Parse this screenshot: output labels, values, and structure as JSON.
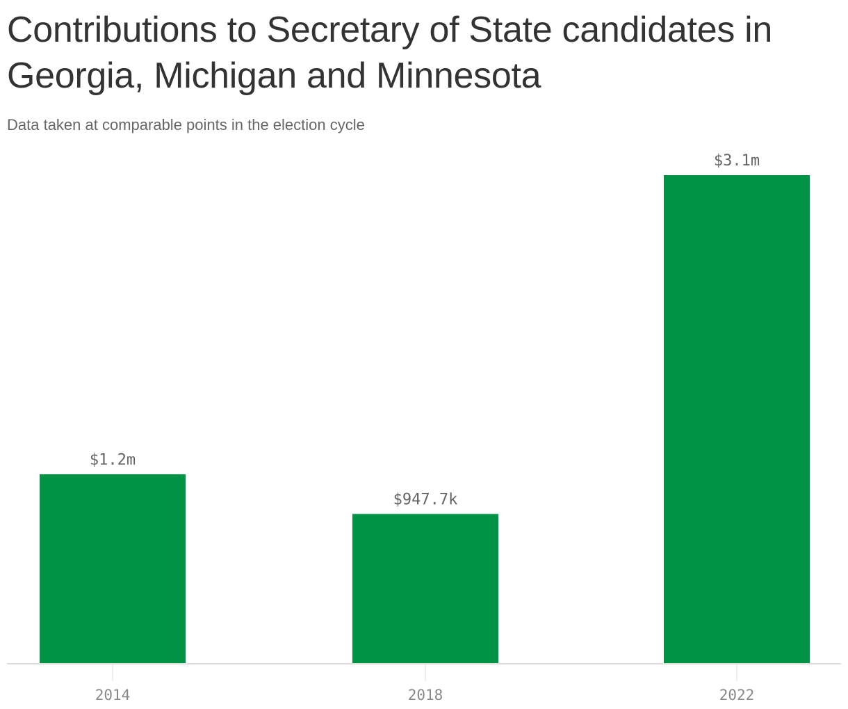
{
  "chart_data": {
    "type": "bar",
    "title": "Contributions to Secretary of State candidates in Georgia, Michigan and Minnesota",
    "subtitle": "Data taken at comparable points in the election cycle",
    "categories": [
      "2014",
      "2018",
      "2022"
    ],
    "values": [
      1200000,
      947700,
      3100000
    ],
    "value_labels": [
      "$1.2m",
      "$947.7k",
      "$3.1m"
    ],
    "xlabel": "",
    "ylabel": "",
    "ylim": [
      0,
      3100000
    ],
    "grid": false,
    "legend": "none",
    "colors": {
      "bar": "#009245",
      "axis": "#dddddd",
      "tick_label": "#888888",
      "value_label": "#666666"
    }
  }
}
